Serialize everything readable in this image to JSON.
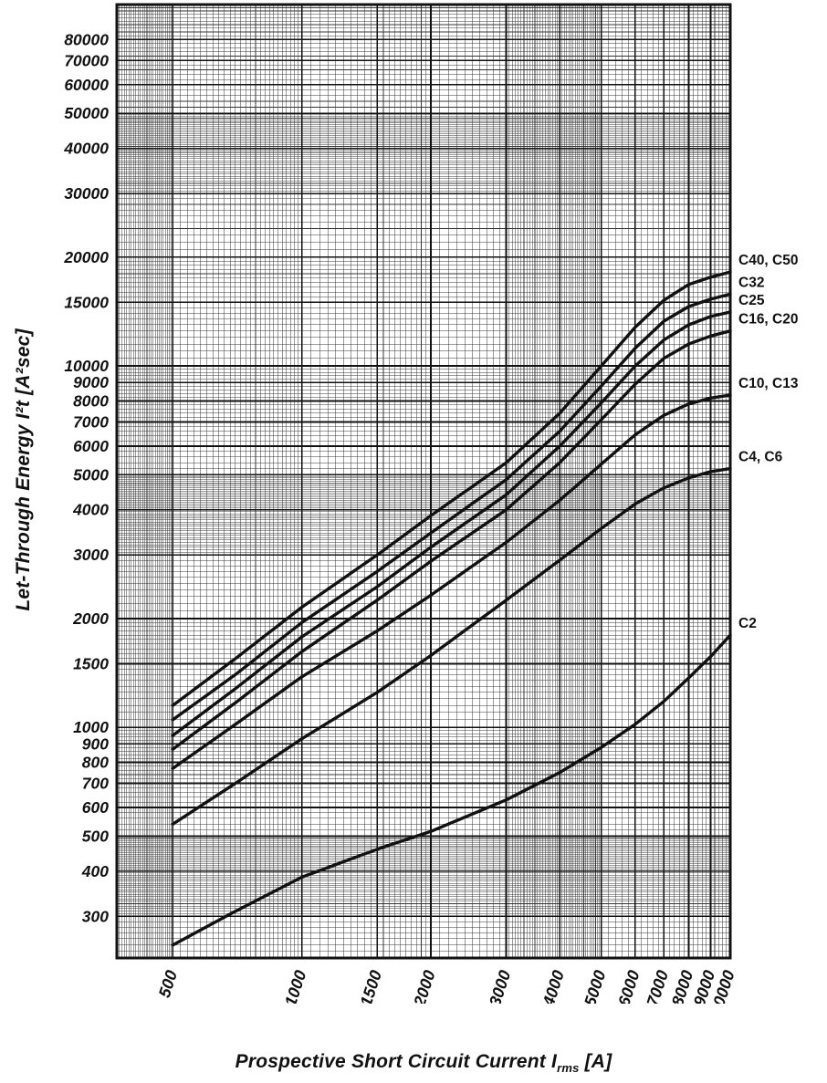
{
  "figure": {
    "ylabel_text": "Let-Through Energy I²t [A²sec]",
    "xlabel_main": "Prospective Short Circuit Current I",
    "xlabel_sub": "rms",
    "xlabel_end": " [A]"
  },
  "colors": {
    "ink": "#111111",
    "background": "#ffffff"
  },
  "chart_data": {
    "type": "line",
    "title": "",
    "xlabel": "Prospective Short Circuit Current Irms [A]",
    "ylabel": "Let-Through Energy I²t [A²sec]",
    "x_scale": "log",
    "y_scale": "log",
    "xlim": [
      370,
      10000
    ],
    "ylim": [
      230,
      100000
    ],
    "grid": "log-major-minor",
    "legend_position": "right-edge-labels",
    "x_ticks": [
      500,
      1000,
      1500,
      2000,
      3000,
      4000,
      5000,
      6000,
      7000,
      8000,
      9000,
      10000
    ],
    "y_ticks": [
      300,
      400,
      500,
      600,
      700,
      800,
      900,
      1000,
      1500,
      2000,
      3000,
      4000,
      5000,
      6000,
      7000,
      8000,
      9000,
      10000,
      15000,
      20000,
      30000,
      40000,
      50000,
      60000,
      70000,
      80000
    ],
    "x": [
      500,
      700,
      1000,
      1500,
      2000,
      3000,
      4000,
      5000,
      6000,
      7000,
      8000,
      9000,
      10000
    ],
    "series": [
      {
        "name": "C40, C50",
        "values": [
          1150,
          1550,
          2150,
          3000,
          3850,
          5400,
          7400,
          10000,
          12800,
          15200,
          16800,
          17600,
          18200
        ]
      },
      {
        "name": "C32",
        "values": [
          1050,
          1400,
          1950,
          2700,
          3450,
          4850,
          6600,
          8800,
          11200,
          13300,
          14600,
          15300,
          15800
        ]
      },
      {
        "name": "C25",
        "values": [
          950,
          1280,
          1780,
          2450,
          3150,
          4400,
          6000,
          7900,
          10000,
          11800,
          13000,
          13700,
          14100
        ]
      },
      {
        "name": "C16, C20",
        "values": [
          870,
          1170,
          1620,
          2250,
          2880,
          4000,
          5400,
          7100,
          8900,
          10500,
          11500,
          12100,
          12500
        ]
      },
      {
        "name": "C10, C13",
        "values": [
          770,
          1020,
          1380,
          1850,
          2320,
          3250,
          4250,
          5350,
          6450,
          7300,
          7850,
          8150,
          8300
        ]
      },
      {
        "name": "C4, C6",
        "values": [
          540,
          700,
          930,
          1250,
          1580,
          2250,
          2900,
          3550,
          4150,
          4600,
          4900,
          5100,
          5200
        ]
      },
      {
        "name": "C2",
        "values": [
          250,
          310,
          385,
          460,
          515,
          630,
          750,
          880,
          1020,
          1180,
          1370,
          1570,
          1800
        ]
      }
    ]
  }
}
